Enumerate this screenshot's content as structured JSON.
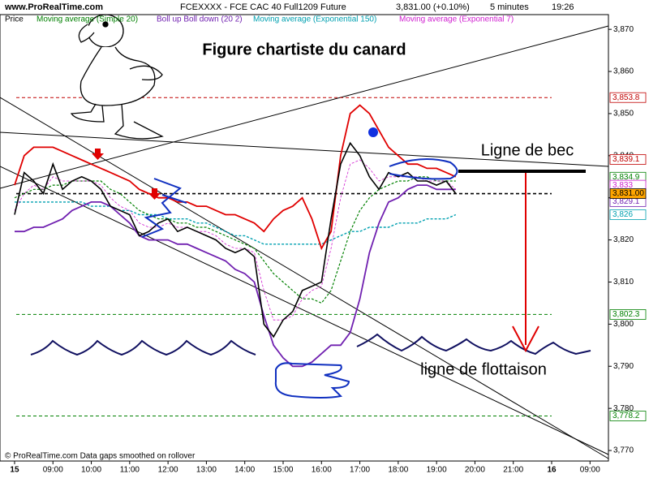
{
  "chart_data": {
    "type": "line",
    "title": "Figure chartiste du canard",
    "header": {
      "site": "www.ProRealTime.com",
      "instrument": "FCEXXXX - FCE CAC 40 Full1209 Future",
      "quote": "3,831.00 (+0.10%)",
      "interval": "5 minutes",
      "time": "19:26"
    },
    "footer": "© ProRealTime.com Data gaps smoothed on rollover",
    "annotations": {
      "beak": "Ligne de bec",
      "waterline": "ligne de flottaison"
    },
    "xlim": [
      7.62,
      23.48
    ],
    "ylim": [
      3767.5,
      3873.5
    ],
    "xticks": [
      {
        "value": 8,
        "label": "15"
      },
      {
        "value": 9,
        "label": "09:00"
      },
      {
        "value": 10,
        "label": "10:00"
      },
      {
        "value": 11,
        "label": "11:00"
      },
      {
        "value": 12,
        "label": "12:00"
      },
      {
        "value": 13,
        "label": "13:00"
      },
      {
        "value": 14,
        "label": "14:00"
      },
      {
        "value": 15,
        "label": "15:00"
      },
      {
        "value": 16,
        "label": "16:00"
      },
      {
        "value": 17,
        "label": "17:00"
      },
      {
        "value": 18,
        "label": "18:00"
      },
      {
        "value": 19,
        "label": "19:00"
      },
      {
        "value": 20,
        "label": "20:00"
      },
      {
        "value": 21,
        "label": "21:00"
      },
      {
        "value": 22,
        "label": "16"
      },
      {
        "value": 23,
        "label": "09:00"
      }
    ],
    "yticks": [
      {
        "value": 3870,
        "label": "3,870"
      },
      {
        "value": 3860,
        "label": "3,860"
      },
      {
        "value": 3850,
        "label": "3,850"
      },
      {
        "value": 3840,
        "label": "3,840"
      },
      {
        "value": 3830,
        "label": "3,830"
      },
      {
        "value": 3820,
        "label": "3,820"
      },
      {
        "value": 3810,
        "label": "3,810"
      },
      {
        "value": 3800,
        "label": "3,800"
      },
      {
        "value": 3790,
        "label": "3,790"
      },
      {
        "value": 3780,
        "label": "3,780"
      },
      {
        "value": 3770,
        "label": "3,770"
      }
    ],
    "x": [
      8,
      8.25,
      8.5,
      8.75,
      9,
      9.25,
      9.5,
      9.75,
      10,
      10.25,
      10.5,
      10.75,
      11,
      11.25,
      11.5,
      11.75,
      12,
      12.25,
      12.5,
      12.75,
      13,
      13.25,
      13.5,
      13.75,
      14,
      14.25,
      14.5,
      14.75,
      15,
      15.25,
      15.5,
      15.75,
      16,
      16.25,
      16.5,
      16.75,
      17,
      17.25,
      17.5,
      17.75,
      18,
      18.25,
      18.5,
      18.75,
      19,
      19.25,
      19.5
    ],
    "series": [
      {
        "name": "Price",
        "color": "#000000",
        "width": 1.6,
        "values": [
          3826,
          3836,
          3834,
          3831,
          3838,
          3832,
          3834,
          3835,
          3834,
          3832,
          3828,
          3827,
          3826,
          3821,
          3822,
          3824,
          3825,
          3822,
          3823,
          3822,
          3821,
          3820,
          3818,
          3817,
          3818,
          3816,
          3800,
          3797,
          3801,
          3803,
          3808,
          3809,
          3810,
          3825,
          3838,
          3843,
          3840,
          3835,
          3832,
          3836,
          3835,
          3836,
          3834,
          3834,
          3833,
          3834,
          3831
        ]
      },
      {
        "name": "Moving average (Simple 20)",
        "color": "#008000",
        "dashed": true,
        "width": 1.2,
        "values": [
          3830,
          3831,
          3832,
          3832,
          3833,
          3833,
          3834,
          3834,
          3834,
          3834,
          3832,
          3831,
          3829,
          3827,
          3826,
          3825,
          3825,
          3824,
          3824,
          3823,
          3823,
          3822,
          3821,
          3820,
          3819,
          3818,
          3815,
          3812,
          3810,
          3808,
          3806,
          3806,
          3805,
          3808,
          3815,
          3822,
          3827,
          3830,
          3832,
          3833,
          3834,
          3834,
          3835,
          3835,
          3834,
          3834,
          3834
        ]
      },
      {
        "name": "Boll up Boll down (20 2)",
        "color": "#e00000",
        "lower_color": "#7020b0",
        "width": 1.8,
        "values": [
          3833,
          3840,
          3842,
          3842,
          3842,
          3841,
          3840,
          3839,
          3838,
          3837,
          3836,
          3835,
          3834,
          3832,
          3831,
          3830,
          3830,
          3829,
          3829,
          3828,
          3828,
          3827,
          3826,
          3826,
          3825,
          3824,
          3822,
          3825,
          3827,
          3828,
          3830,
          3825,
          3818,
          3822,
          3840,
          3850,
          3852,
          3850,
          3846,
          3842,
          3840,
          3838,
          3838,
          3837,
          3837,
          3836,
          3835
        ],
        "lower": [
          3822,
          3822,
          3823,
          3823,
          3824,
          3825,
          3827,
          3828,
          3829,
          3829,
          3828,
          3826,
          3824,
          3821,
          3820,
          3820,
          3820,
          3819,
          3819,
          3818,
          3817,
          3816,
          3815,
          3813,
          3812,
          3810,
          3802,
          3795,
          3792,
          3790,
          3790,
          3791,
          3793,
          3795,
          3795,
          3798,
          3806,
          3817,
          3824,
          3829,
          3830,
          3832,
          3833,
          3833,
          3832,
          3832,
          3832
        ]
      },
      {
        "name": "Moving average (Exponential 150)",
        "color": "#00a0b0",
        "dashed": true,
        "width": 1.4,
        "values": [
          3829,
          3829,
          3829,
          3829,
          3829,
          3829,
          3829,
          3829,
          3828,
          3828,
          3828,
          3827,
          3827,
          3826,
          3826,
          3826,
          3825,
          3825,
          3825,
          3824,
          3824,
          3823,
          3822,
          3821,
          3821,
          3820,
          3819,
          3819,
          3819,
          3819,
          3819,
          3819,
          3819,
          3820,
          3821,
          3822,
          3822,
          3823,
          3823,
          3823,
          3824,
          3824,
          3824,
          3825,
          3825,
          3825,
          3826
        ]
      },
      {
        "name": "Moving average (Exponential 7)",
        "color": "#d020d0",
        "dashed": true,
        "width": 0.8,
        "values": [
          3827,
          3831,
          3833,
          3832,
          3835,
          3834,
          3834,
          3834,
          3834,
          3833,
          3830,
          3828,
          3827,
          3824,
          3823,
          3823,
          3824,
          3823,
          3823,
          3822,
          3822,
          3821,
          3819,
          3818,
          3818,
          3817,
          3808,
          3801,
          3801,
          3802,
          3806,
          3808,
          3809,
          3818,
          3830,
          3838,
          3839,
          3837,
          3834,
          3835,
          3835,
          3835,
          3835,
          3834,
          3834,
          3834,
          3832
        ]
      }
    ],
    "price_labels": [
      {
        "value": 3853.8,
        "label": "3,853.8",
        "color": "#c00000",
        "line": true
      },
      {
        "value": 3839.1,
        "label": "3,839.1",
        "color": "#c00000"
      },
      {
        "value": 3834.9,
        "label": "3,834.9",
        "color": "#008000"
      },
      {
        "value": 3833,
        "label": "3,833",
        "color": "#d020d0"
      },
      {
        "value": 3829.1,
        "label": "3,829.1",
        "color": "#7020b0"
      },
      {
        "value": 3831.0,
        "label": "3,831.00",
        "color": "#000000",
        "background": "#ffa500",
        "line": true
      },
      {
        "value": 3826,
        "label": "3,826",
        "color": "#00a0b0"
      },
      {
        "value": 3802.3,
        "label": "3,802.3",
        "color": "#008000",
        "line": true
      },
      {
        "value": 3778.2,
        "label": "3,778.2",
        "color": "#008000",
        "line": true
      }
    ]
  }
}
